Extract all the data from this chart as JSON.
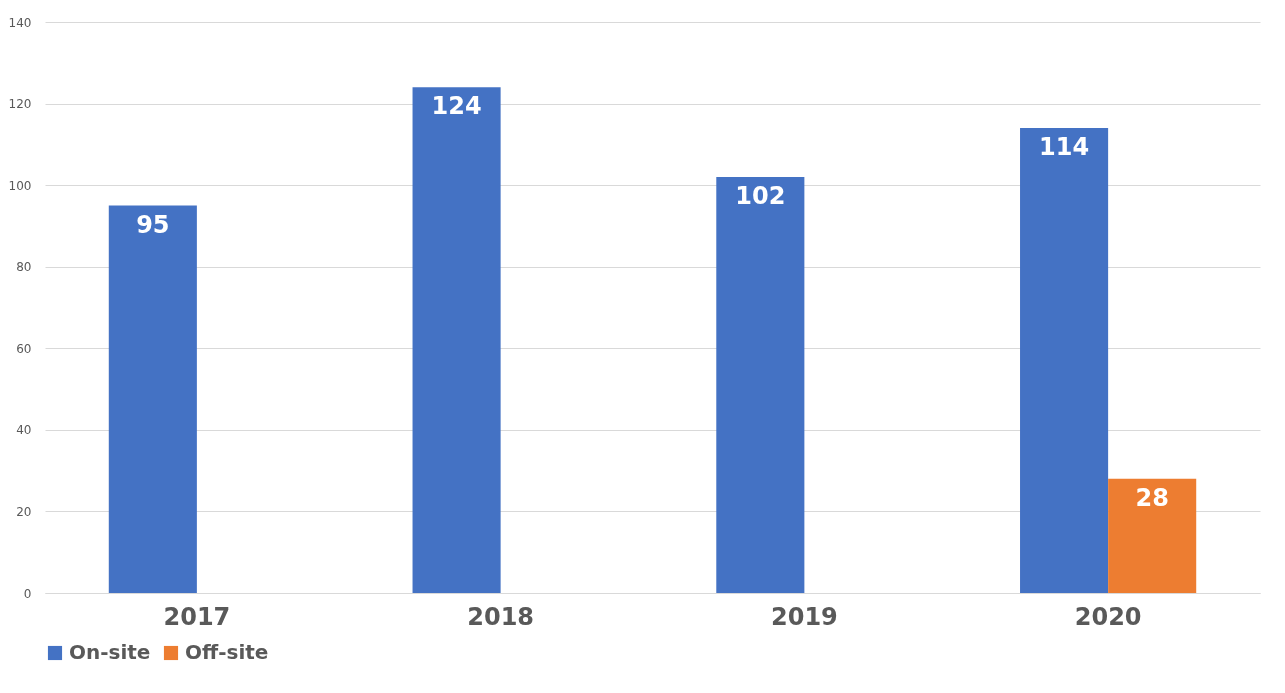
{
  "chart_data": {
    "type": "bar",
    "categories": [
      "2017",
      "2018",
      "2019",
      "2020"
    ],
    "series": [
      {
        "name": "On-site",
        "color": "#4472c4",
        "values": [
          95,
          124,
          102,
          114
        ]
      },
      {
        "name": "Off-site",
        "color": "#ed7d31",
        "values": [
          null,
          null,
          null,
          28
        ]
      }
    ],
    "ylim": [
      0,
      140
    ],
    "yticks": [
      0,
      20,
      40,
      60,
      80,
      100,
      120,
      140
    ],
    "grid": "y",
    "legend": "bottom",
    "data_labels": true
  }
}
